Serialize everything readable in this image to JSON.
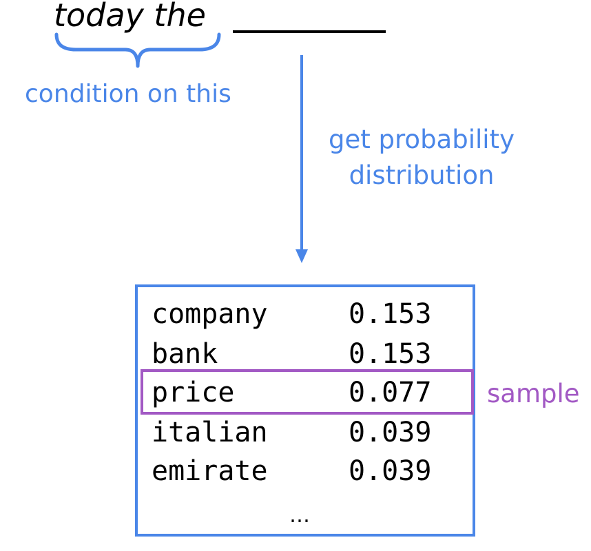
{
  "prompt": {
    "text": "today the"
  },
  "condition_label": "condition on this",
  "distribution_label": {
    "line1": "get probability",
    "line2": "distribution"
  },
  "distribution": {
    "rows": [
      {
        "word": "company",
        "prob": "0.153"
      },
      {
        "word": "bank",
        "prob": "0.153"
      },
      {
        "word": "price",
        "prob": "0.077"
      },
      {
        "word": "italian",
        "prob": "0.039"
      },
      {
        "word": "emirate",
        "prob": "0.039"
      }
    ],
    "ellipsis": "…"
  },
  "sample_label": "sample",
  "colors": {
    "blue": "#4a86e8",
    "purple": "#a259c4",
    "text": "#000000"
  }
}
